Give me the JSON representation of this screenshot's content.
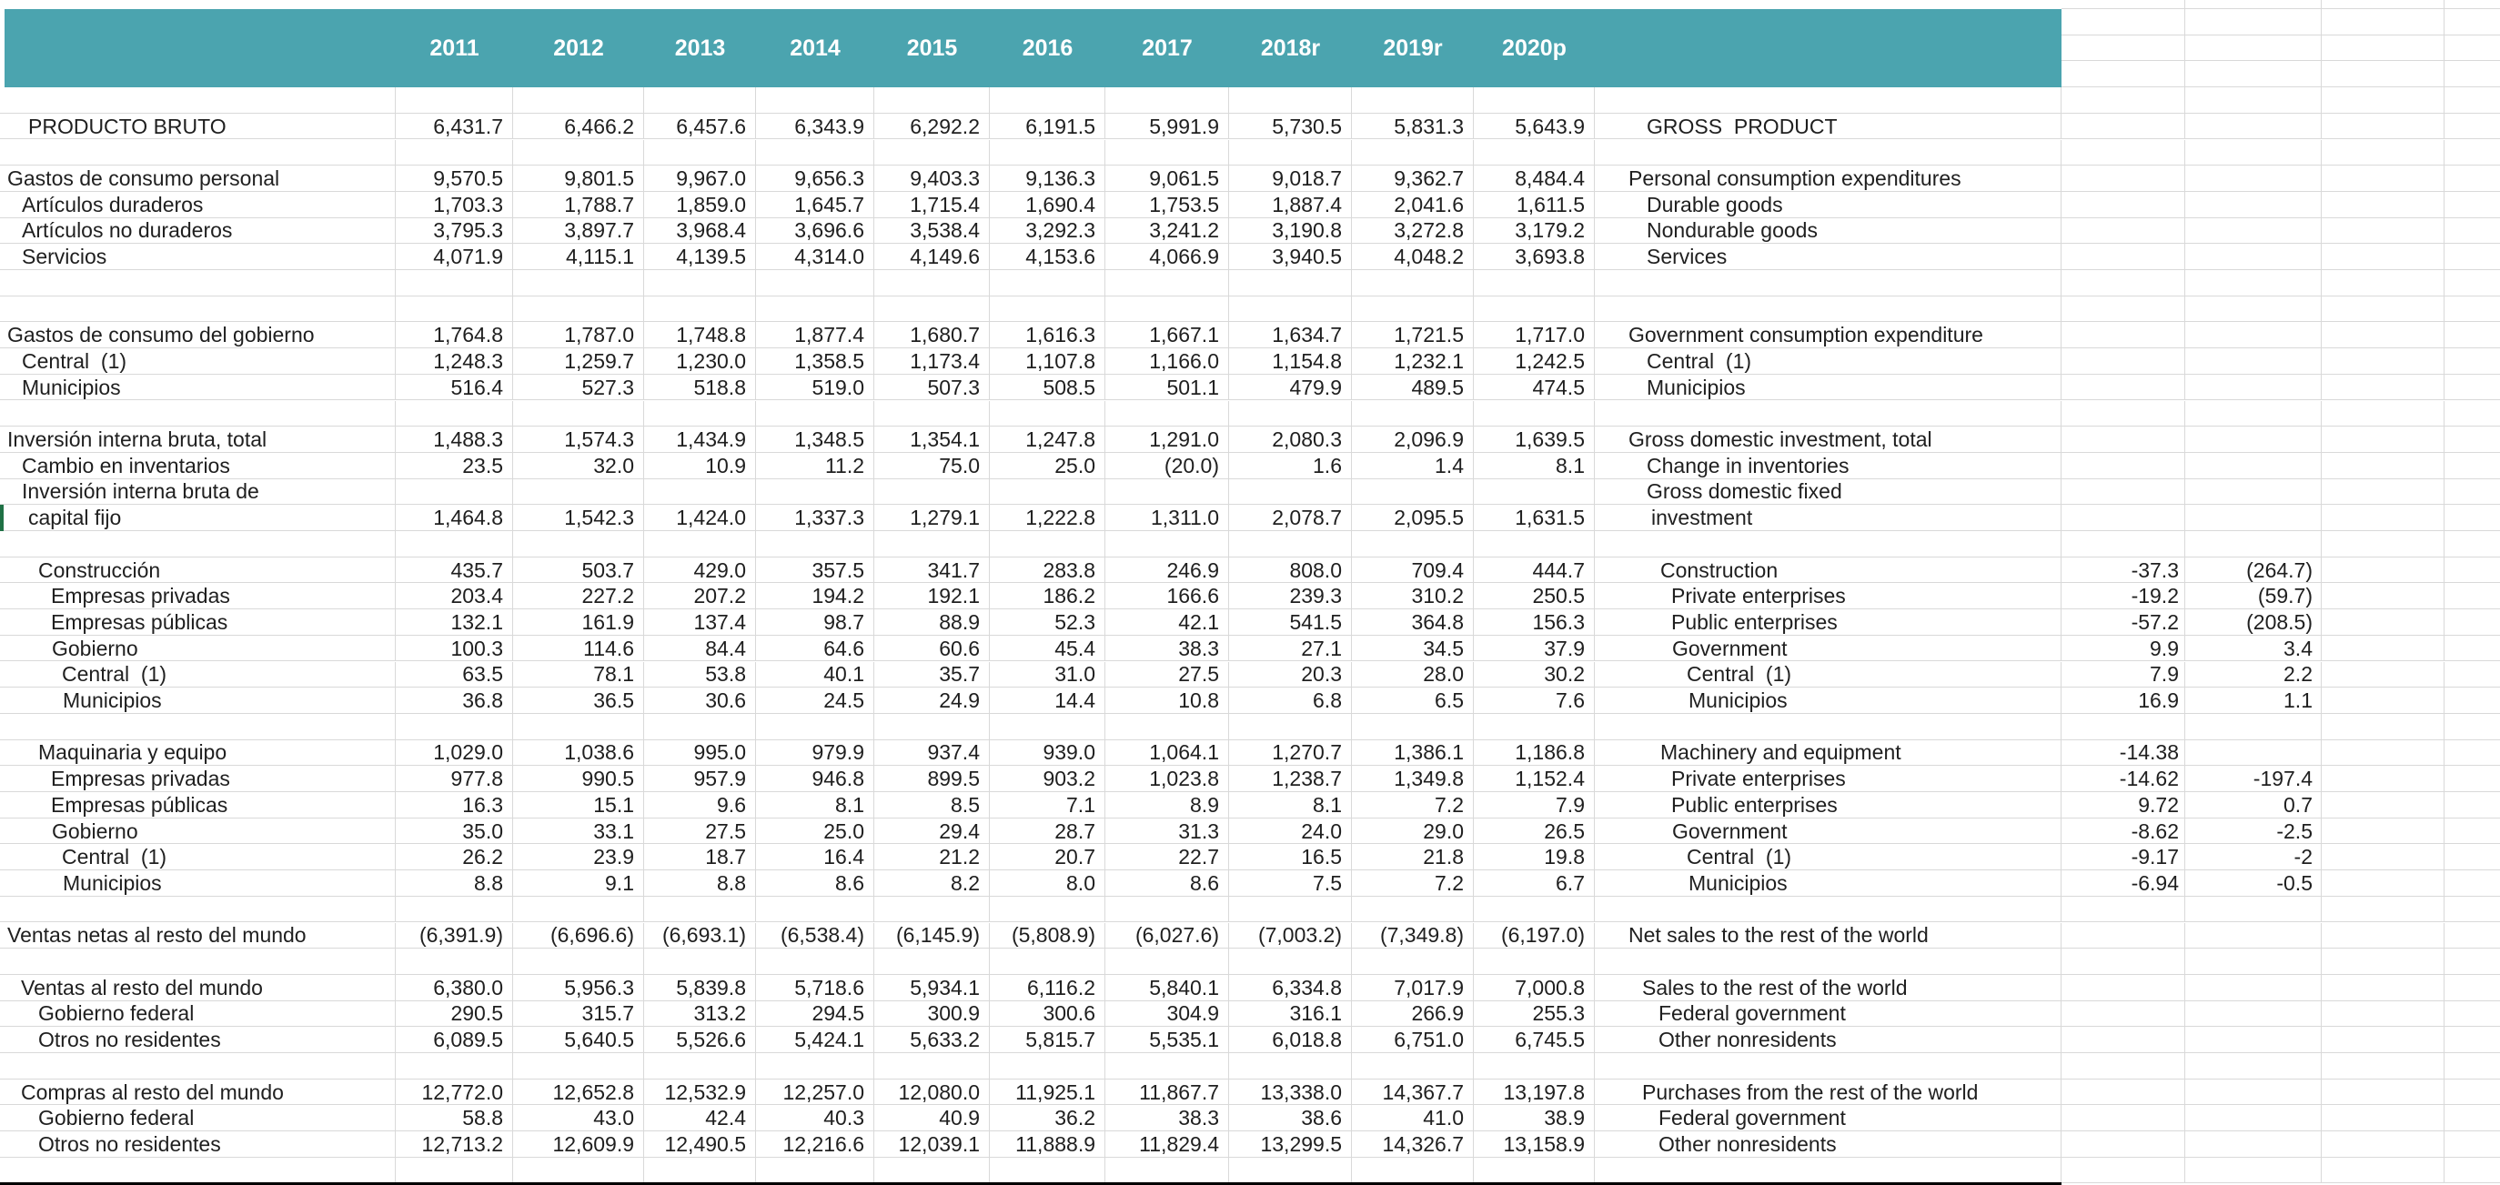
{
  "sheet": {
    "title": "Producto bruto / Gross product table (Spanish-English national accounts spreadsheet)",
    "colors": {
      "header_bg": "#4BA4AF",
      "header_text": "#FFFFFF",
      "grid_line": "#D9D9D9",
      "selection_green": "#1F7145",
      "cell_text": "#1F1F1F",
      "bottom_rule": "#000000"
    },
    "years": [
      "2011",
      "2012",
      "2013",
      "2014",
      "2015",
      "2016",
      "2017",
      "2018r",
      "2019r",
      "2020p"
    ],
    "selected_cell": {
      "row_label_es": "capital fijo",
      "column": "2018r",
      "value": "2,078.7"
    },
    "rows": [
      null,
      {
        "es": "PRODUCTO BRUTO",
        "en": "GROSS  PRODUCT",
        "es_pad": 31,
        "en_pad": 57,
        "values": [
          "6,431.7",
          "6,466.2",
          "6,457.6",
          "6,343.9",
          "6,292.2",
          "6,191.5",
          "5,991.9",
          "5,730.5",
          "5,831.3",
          "5,643.9"
        ],
        "extra": [
          "",
          ""
        ]
      },
      null,
      {
        "es": "Gastos de consumo personal",
        "en": "Personal consumption expenditures",
        "es_pad": 8,
        "en_pad": 37,
        "values": [
          "9,570.5",
          "9,801.5",
          "9,967.0",
          "9,656.3",
          "9,403.3",
          "9,136.3",
          "9,061.5",
          "9,018.7",
          "9,362.7",
          "8,484.4"
        ],
        "extra": [
          "",
          ""
        ]
      },
      {
        "es": "Artículos duraderos",
        "en": "Durable goods",
        "es_pad": 24,
        "en_pad": 57,
        "values": [
          "1,703.3",
          "1,788.7",
          "1,859.0",
          "1,645.7",
          "1,715.4",
          "1,690.4",
          "1,753.5",
          "1,887.4",
          "2,041.6",
          "1,611.5"
        ],
        "extra": [
          "",
          ""
        ]
      },
      {
        "es": "Artículos no duraderos",
        "en": "Nondurable goods",
        "es_pad": 24,
        "en_pad": 57,
        "values": [
          "3,795.3",
          "3,897.7",
          "3,968.4",
          "3,696.6",
          "3,538.4",
          "3,292.3",
          "3,241.2",
          "3,190.8",
          "3,272.8",
          "3,179.2"
        ],
        "extra": [
          "",
          ""
        ]
      },
      {
        "es": "Servicios",
        "en": "Services",
        "es_pad": 24,
        "en_pad": 57,
        "values": [
          "4,071.9",
          "4,115.1",
          "4,139.5",
          "4,314.0",
          "4,149.6",
          "4,153.6",
          "4,066.9",
          "3,940.5",
          "4,048.2",
          "3,693.8"
        ],
        "extra": [
          "",
          ""
        ]
      },
      null,
      null,
      {
        "es": "Gastos de consumo del gobierno",
        "en": "Government consumption expenditure",
        "es_pad": 8,
        "en_pad": 37,
        "values": [
          "1,764.8",
          "1,787.0",
          "1,748.8",
          "1,877.4",
          "1,680.7",
          "1,616.3",
          "1,667.1",
          "1,634.7",
          "1,721.5",
          "1,717.0"
        ],
        "extra": [
          "",
          ""
        ]
      },
      {
        "es": "Central  (1)",
        "en": "Central  (1)",
        "es_pad": 24,
        "en_pad": 57,
        "values": [
          "1,248.3",
          "1,259.7",
          "1,230.0",
          "1,358.5",
          "1,173.4",
          "1,107.8",
          "1,166.0",
          "1,154.8",
          "1,232.1",
          "1,242.5"
        ],
        "extra": [
          "",
          ""
        ]
      },
      {
        "es": "Municipios",
        "en": "Municipios",
        "es_pad": 24,
        "en_pad": 57,
        "values": [
          "516.4",
          "527.3",
          "518.8",
          "519.0",
          "507.3",
          "508.5",
          "501.1",
          "479.9",
          "489.5",
          "474.5"
        ],
        "extra": [
          "",
          ""
        ]
      },
      null,
      {
        "es": "Inversión interna bruta, total",
        "en": "Gross domestic investment, total",
        "es_pad": 8,
        "en_pad": 37,
        "values": [
          "1,488.3",
          "1,574.3",
          "1,434.9",
          "1,348.5",
          "1,354.1",
          "1,247.8",
          "1,291.0",
          "2,080.3",
          "2,096.9",
          "1,639.5"
        ],
        "extra": [
          "",
          ""
        ]
      },
      {
        "es": "Cambio en inventarios",
        "en": "Change in inventories",
        "es_pad": 24,
        "en_pad": 57,
        "values": [
          "23.5",
          "32.0",
          "10.9",
          "11.2",
          "75.0",
          "25.0",
          "(20.0)",
          "1.6",
          "1.4",
          "8.1"
        ],
        "extra": [
          "",
          ""
        ]
      },
      {
        "es": "Inversión interna bruta de",
        "en": "Gross domestic fixed",
        "es_pad": 24,
        "en_pad": 57,
        "values": [
          "",
          "",
          "",
          "",
          "",
          "",
          "",
          "",
          "",
          ""
        ],
        "extra": [
          "",
          ""
        ]
      },
      {
        "es": "capital fijo",
        "en": "investment",
        "es_pad": 31,
        "en_pad": 62,
        "selected_year_index": 7,
        "values": [
          "1,464.8",
          "1,542.3",
          "1,424.0",
          "1,337.3",
          "1,279.1",
          "1,222.8",
          "1,311.0",
          "2,078.7",
          "2,095.5",
          "1,631.5"
        ],
        "extra": [
          "",
          ""
        ]
      },
      null,
      {
        "es": "Construcción",
        "en": "Construction",
        "es_pad": 42,
        "en_pad": 72,
        "values": [
          "435.7",
          "503.7",
          "429.0",
          "357.5",
          "341.7",
          "283.8",
          "246.9",
          "808.0",
          "709.4",
          "444.7"
        ],
        "extra": [
          "-37.3",
          "(264.7)"
        ]
      },
      {
        "es": "Empresas privadas",
        "en": "Private enterprises",
        "es_pad": 56,
        "en_pad": 84,
        "values": [
          "203.4",
          "227.2",
          "207.2",
          "194.2",
          "192.1",
          "186.2",
          "166.6",
          "239.3",
          "310.2",
          "250.5"
        ],
        "extra": [
          "-19.2",
          "(59.7)"
        ]
      },
      {
        "es": "Empresas públicas",
        "en": "Public enterprises",
        "es_pad": 56,
        "en_pad": 84,
        "values": [
          "132.1",
          "161.9",
          "137.4",
          "98.7",
          "88.9",
          "52.3",
          "42.1",
          "541.5",
          "364.8",
          "156.3"
        ],
        "extra": [
          "-57.2",
          "(208.5)"
        ]
      },
      {
        "es": "Gobierno",
        "en": "Government",
        "es_pad": 57,
        "en_pad": 85,
        "values": [
          "100.3",
          "114.6",
          "84.4",
          "64.6",
          "60.6",
          "45.4",
          "38.3",
          "27.1",
          "34.5",
          "37.9"
        ],
        "extra": [
          "9.9",
          "3.4"
        ]
      },
      {
        "es": "Central  (1)",
        "en": "Central  (1)",
        "es_pad": 68,
        "en_pad": 101,
        "values": [
          "63.5",
          "78.1",
          "53.8",
          "40.1",
          "35.7",
          "31.0",
          "27.5",
          "20.3",
          "28.0",
          "30.2"
        ],
        "extra": [
          "7.9",
          "2.2"
        ]
      },
      {
        "es": "Municipios",
        "en": "Municipios",
        "es_pad": 69,
        "en_pad": 103,
        "values": [
          "36.8",
          "36.5",
          "30.6",
          "24.5",
          "24.9",
          "14.4",
          "10.8",
          "6.8",
          "6.5",
          "7.6"
        ],
        "extra": [
          "16.9",
          "1.1"
        ]
      },
      null,
      {
        "es": "Maquinaria y equipo",
        "en": "Machinery and equipment",
        "es_pad": 42,
        "en_pad": 72,
        "values": [
          "1,029.0",
          "1,038.6",
          "995.0",
          "979.9",
          "937.4",
          "939.0",
          "1,064.1",
          "1,270.7",
          "1,386.1",
          "1,186.8"
        ],
        "extra": [
          "-14.38",
          ""
        ]
      },
      {
        "es": "Empresas privadas",
        "en": "Private enterprises",
        "es_pad": 56,
        "en_pad": 84,
        "values": [
          "977.8",
          "990.5",
          "957.9",
          "946.8",
          "899.5",
          "903.2",
          "1,023.8",
          "1,238.7",
          "1,349.8",
          "1,152.4"
        ],
        "extra": [
          "-14.62",
          "-197.4"
        ]
      },
      {
        "es": "Empresas públicas",
        "en": "Public enterprises",
        "es_pad": 56,
        "en_pad": 84,
        "values": [
          "16.3",
          "15.1",
          "9.6",
          "8.1",
          "8.5",
          "7.1",
          "8.9",
          "8.1",
          "7.2",
          "7.9"
        ],
        "extra": [
          "9.72",
          "0.7"
        ]
      },
      {
        "es": "Gobierno",
        "en": "Government",
        "es_pad": 57,
        "en_pad": 85,
        "values": [
          "35.0",
          "33.1",
          "27.5",
          "25.0",
          "29.4",
          "28.7",
          "31.3",
          "24.0",
          "29.0",
          "26.5"
        ],
        "extra": [
          "-8.62",
          "-2.5"
        ]
      },
      {
        "es": "Central  (1)",
        "en": "Central  (1)",
        "es_pad": 68,
        "en_pad": 101,
        "values": [
          "26.2",
          "23.9",
          "18.7",
          "16.4",
          "21.2",
          "20.7",
          "22.7",
          "16.5",
          "21.8",
          "19.8"
        ],
        "extra": [
          "-9.17",
          "-2"
        ]
      },
      {
        "es": "Municipios",
        "en": "Municipios",
        "es_pad": 69,
        "en_pad": 103,
        "values": [
          "8.8",
          "9.1",
          "8.8",
          "8.6",
          "8.2",
          "8.0",
          "8.6",
          "7.5",
          "7.2",
          "6.7"
        ],
        "extra": [
          "-6.94",
          "-0.5"
        ]
      },
      null,
      {
        "es": "Ventas netas al resto del mundo",
        "en": "Net sales to the rest of the world",
        "es_pad": 8,
        "en_pad": 37,
        "values": [
          "(6,391.9)",
          "(6,696.6)",
          "(6,693.1)",
          "(6,538.4)",
          "(6,145.9)",
          "(5,808.9)",
          "(6,027.6)",
          "(7,003.2)",
          "(7,349.8)",
          "(6,197.0)"
        ],
        "extra": [
          "",
          ""
        ]
      },
      null,
      {
        "es": "Ventas al resto del mundo",
        "en": "Sales to the rest of the world",
        "es_pad": 23,
        "en_pad": 52,
        "values": [
          "6,380.0",
          "5,956.3",
          "5,839.8",
          "5,718.6",
          "5,934.1",
          "6,116.2",
          "5,840.1",
          "6,334.8",
          "7,017.9",
          "7,000.8"
        ],
        "extra": [
          "",
          ""
        ]
      },
      {
        "es": "Gobierno federal",
        "en": "Federal government",
        "es_pad": 42,
        "en_pad": 70,
        "values": [
          "290.5",
          "315.7",
          "313.2",
          "294.5",
          "300.9",
          "300.6",
          "304.9",
          "316.1",
          "266.9",
          "255.3"
        ],
        "extra": [
          "",
          ""
        ]
      },
      {
        "es": "Otros no residentes",
        "en": "Other nonresidents",
        "es_pad": 42,
        "en_pad": 70,
        "values": [
          "6,089.5",
          "5,640.5",
          "5,526.6",
          "5,424.1",
          "5,633.2",
          "5,815.7",
          "5,535.1",
          "6,018.8",
          "6,751.0",
          "6,745.5"
        ],
        "extra": [
          "",
          ""
        ]
      },
      null,
      {
        "es": "Compras al resto del mundo",
        "en": "Purchases from the rest of the world",
        "es_pad": 23,
        "en_pad": 52,
        "values": [
          "12,772.0",
          "12,652.8",
          "12,532.9",
          "12,257.0",
          "12,080.0",
          "11,925.1",
          "11,867.7",
          "13,338.0",
          "14,367.7",
          "13,197.8"
        ],
        "extra": [
          "",
          ""
        ]
      },
      {
        "es": "Gobierno federal",
        "en": "Federal government",
        "es_pad": 42,
        "en_pad": 70,
        "values": [
          "58.8",
          "43.0",
          "42.4",
          "40.3",
          "40.9",
          "36.2",
          "38.3",
          "38.6",
          "41.0",
          "38.9"
        ],
        "extra": [
          "",
          ""
        ]
      },
      {
        "es": "Otros no residentes",
        "en": "Other nonresidents",
        "es_pad": 42,
        "en_pad": 70,
        "values": [
          "12,713.2",
          "12,609.9",
          "12,490.5",
          "12,216.6",
          "12,039.1",
          "11,888.9",
          "11,829.4",
          "13,299.5",
          "14,326.7",
          "13,158.9"
        ],
        "extra": [
          "",
          ""
        ]
      },
      null
    ]
  }
}
